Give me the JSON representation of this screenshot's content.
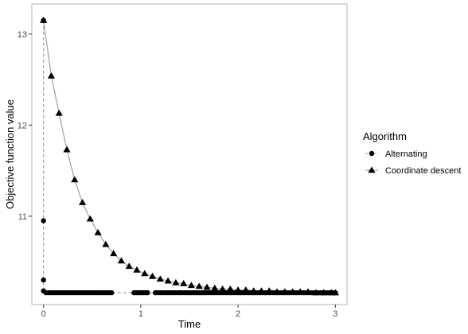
{
  "chart_data": {
    "type": "line",
    "xlabel": "Time",
    "ylabel": "Objective function value",
    "xlim": [
      -0.12,
      3.12
    ],
    "ylim": [
      10.03,
      13.33
    ],
    "x_ticks": [
      0,
      1,
      2,
      3
    ],
    "y_ticks": [
      11,
      12,
      13
    ],
    "grid": false,
    "legend": {
      "title": "Algorithm",
      "placement": "right"
    },
    "series": [
      {
        "name": "Alternating",
        "marker": "circle",
        "line_style": "dashed",
        "color": "#000000",
        "line_color": "#a6a6a6",
        "x": [
          0,
          0,
          0,
          0,
          0.025,
          0.05,
          0.075,
          0.1,
          0.125,
          0.15,
          0.175,
          0.2,
          0.225,
          0.25,
          0.275,
          0.3,
          0.325,
          0.35,
          0.375,
          0.4,
          0.425,
          0.45,
          0.475,
          0.5,
          0.525,
          0.55,
          0.575,
          0.6,
          0.625,
          0.65,
          0.675,
          0.7,
          0.93,
          0.95,
          0.97,
          0.99,
          1.01,
          1.03,
          1.05,
          1.07,
          1.15,
          1.175,
          1.2,
          1.225,
          1.25,
          1.275,
          1.3,
          1.325,
          1.35,
          1.375,
          1.4,
          1.425,
          1.45,
          1.475,
          1.5,
          1.525,
          1.55,
          1.575,
          1.6,
          1.625,
          1.65,
          1.675,
          1.7,
          1.725,
          1.75,
          1.775,
          1.8,
          1.825,
          1.85,
          1.875,
          1.9,
          1.925,
          1.95,
          1.975,
          2.0,
          2.025,
          2.05,
          2.075,
          2.1,
          2.125,
          2.15,
          2.175,
          2.2,
          2.225,
          2.25,
          2.275,
          2.3,
          2.325,
          2.35,
          2.375,
          2.4,
          2.425,
          2.45,
          2.475,
          2.5,
          2.525,
          2.55,
          2.575,
          2.6,
          2.625,
          2.65,
          2.675,
          2.7,
          2.725,
          2.75,
          2.775,
          2.8,
          2.825,
          2.85,
          2.875,
          2.9,
          2.925,
          2.95,
          2.975,
          3.0
        ],
        "y": [
          13.15,
          10.95,
          10.3,
          10.18,
          10.16,
          10.16,
          10.16,
          10.16,
          10.16,
          10.16,
          10.16,
          10.16,
          10.16,
          10.16,
          10.16,
          10.16,
          10.16,
          10.16,
          10.16,
          10.16,
          10.16,
          10.16,
          10.16,
          10.16,
          10.16,
          10.16,
          10.16,
          10.16,
          10.16,
          10.16,
          10.16,
          10.16,
          10.16,
          10.16,
          10.16,
          10.16,
          10.16,
          10.16,
          10.16,
          10.16,
          10.16,
          10.16,
          10.16,
          10.16,
          10.16,
          10.16,
          10.16,
          10.16,
          10.16,
          10.16,
          10.16,
          10.16,
          10.16,
          10.16,
          10.16,
          10.16,
          10.16,
          10.16,
          10.16,
          10.16,
          10.16,
          10.16,
          10.16,
          10.16,
          10.16,
          10.16,
          10.16,
          10.16,
          10.16,
          10.16,
          10.16,
          10.16,
          10.16,
          10.16,
          10.16,
          10.16,
          10.16,
          10.16,
          10.16,
          10.16,
          10.16,
          10.16,
          10.16,
          10.16,
          10.16,
          10.16,
          10.16,
          10.16,
          10.16,
          10.16,
          10.16,
          10.16,
          10.16,
          10.16,
          10.16,
          10.16,
          10.16,
          10.16,
          10.16,
          10.16,
          10.16,
          10.16,
          10.16,
          10.16,
          10.16,
          10.16,
          10.16,
          10.16,
          10.16,
          10.16,
          10.16,
          10.16,
          10.16,
          10.16,
          10.16
        ]
      },
      {
        "name": "Coordinate descent",
        "marker": "triangle",
        "line_style": "solid",
        "color": "#000000",
        "line_color": "#a6a6a6",
        "x": [
          0.0,
          0.08,
          0.16,
          0.24,
          0.32,
          0.4,
          0.48,
          0.56,
          0.64,
          0.72,
          0.8,
          0.88,
          0.96,
          1.04,
          1.12,
          1.2,
          1.28,
          1.36,
          1.44,
          1.52,
          1.6,
          1.68,
          1.76,
          1.84,
          1.92,
          2.0,
          2.08,
          2.16,
          2.24,
          2.32,
          2.4,
          2.48,
          2.56,
          2.64,
          2.72,
          2.8,
          2.88,
          2.96,
          3.0
        ],
        "y": [
          13.15,
          12.54,
          12.13,
          11.73,
          11.4,
          11.15,
          10.97,
          10.82,
          10.69,
          10.59,
          10.51,
          10.45,
          10.41,
          10.37,
          10.34,
          10.31,
          10.29,
          10.27,
          10.26,
          10.24,
          10.23,
          10.22,
          10.21,
          10.2,
          10.2,
          10.19,
          10.19,
          10.18,
          10.18,
          10.18,
          10.17,
          10.17,
          10.17,
          10.17,
          10.17,
          10.16,
          10.16,
          10.16,
          10.16
        ]
      }
    ]
  }
}
